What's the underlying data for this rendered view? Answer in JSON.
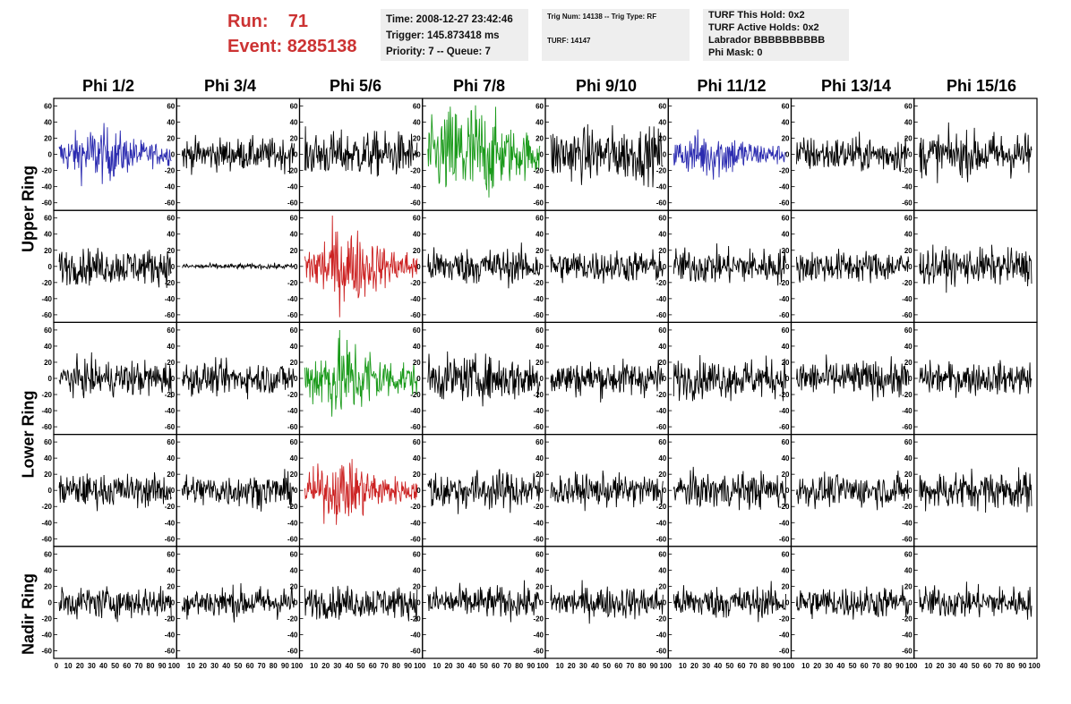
{
  "header": {
    "run_label": "Run:",
    "run_value": "71",
    "event_label": "Event:",
    "event_value": "8285138"
  },
  "time_box": {
    "time": "Time: 2008-12-27 23:42:46",
    "trigger": "Trigger: 145.873418 ms",
    "priority": "Priority: 7 -- Queue: 7"
  },
  "trig_box": {
    "trig": "Trig Num: 14138 -- Trig Type: RF",
    "turf": "TURF: 14147"
  },
  "turf_box": {
    "hold": "TURF This Hold: 0x2",
    "active": "TURF Active Holds: 0x2",
    "labrador": "Labrador BBBBBBBBBB",
    "phimask": "Phi Mask: 0"
  },
  "columns": [
    "Phi 1/2",
    "Phi 3/4",
    "Phi 5/6",
    "Phi 7/8",
    "Phi 9/10",
    "Phi 11/12",
    "Phi 13/14",
    "Phi 15/16"
  ],
  "rings": [
    "Upper Ring",
    "Lower Ring",
    "Nadir Ring"
  ],
  "y_ticks": [
    "60",
    "40",
    "20",
    "0",
    "-20",
    "-40",
    "-60"
  ],
  "x_ticks": [
    "0",
    "10",
    "20",
    "30",
    "40",
    "50",
    "60",
    "70",
    "80",
    "90",
    "100"
  ],
  "colors": {
    "default": "#000000",
    "blue": "#2b2bb0",
    "green": "#1a9a1a",
    "red": "#cc2222",
    "run_text": "#cc3333"
  },
  "trace_colors": [
    [
      "blue",
      "default",
      "default",
      "green",
      "default",
      "blue",
      "default",
      "default"
    ],
    [
      "default",
      "default",
      "red",
      "default",
      "default",
      "default",
      "default",
      "default"
    ],
    [
      "default",
      "default",
      "green",
      "default",
      "default",
      "default",
      "default",
      "default"
    ],
    [
      "default",
      "default",
      "red",
      "default",
      "default",
      "default",
      "default",
      "default"
    ],
    [
      "default",
      "default",
      "default",
      "default",
      "default",
      "default",
      "default",
      "default"
    ]
  ],
  "trace_amplitude": [
    [
      20,
      18,
      25,
      40,
      30,
      18,
      20,
      25
    ],
    [
      20,
      3,
      28,
      20,
      18,
      20,
      18,
      20
    ],
    [
      20,
      18,
      30,
      25,
      20,
      22,
      20,
      18
    ],
    [
      18,
      18,
      22,
      22,
      18,
      20,
      18,
      22
    ],
    [
      18,
      18,
      18,
      18,
      18,
      18,
      18,
      18
    ]
  ],
  "chart_data": {
    "type": "line",
    "xlim": [
      0,
      100
    ],
    "ylim": [
      -65,
      65
    ],
    "grid": false
  }
}
